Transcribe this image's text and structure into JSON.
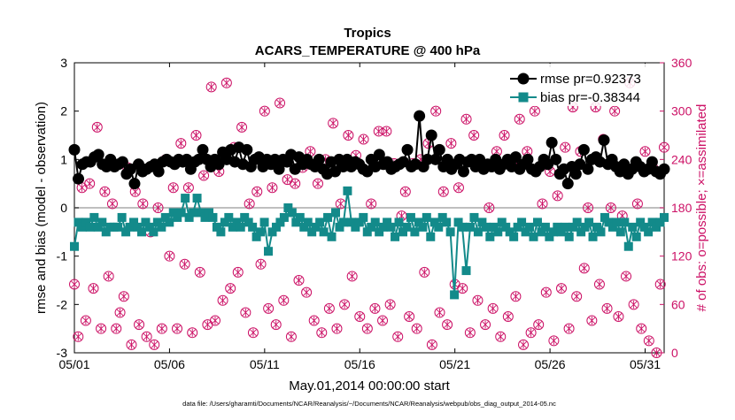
{
  "chart_data": {
    "type": "line",
    "title": "Tropics",
    "subtitle": "ACARS_TEMPERATURE @ 400 hPa",
    "xlabel": "May.01,2014 00:00:00 start",
    "ylabel_left": "rmse and bias (model - observation)",
    "ylabel_right": "# of obs: o=possible; ×=assimilated",
    "footnote": "data file: /Users/gharamti/Documents/NCAR/Reanalysis/~/Documents/NCAR/Reanalysis/webpub/obs_diag_output_2014-05.nc",
    "x_ticks": [
      "05/01",
      "05/06",
      "05/11",
      "05/16",
      "05/21",
      "05/26",
      "05/31"
    ],
    "y_left_ticks": [
      "-3",
      "-2",
      "-1",
      "0",
      "1",
      "2",
      "3"
    ],
    "y_right_ticks": [
      "0",
      "60",
      "120",
      "180",
      "240",
      "300",
      "360"
    ],
    "ylim_left": [
      -3,
      3
    ],
    "ylim_right": [
      0,
      360
    ],
    "xlim": [
      0,
      31
    ],
    "legend_position": "top-right",
    "colors": {
      "rmse": "#000000",
      "bias": "#138a8a",
      "obs": "#cc1166",
      "zero_line": "#aaaaaa"
    },
    "series": [
      {
        "name": "rmse pr=0.92373",
        "axis": "left",
        "values": [
          1.2,
          0.6,
          0.9,
          0.95,
          0.95,
          1.05,
          1.1,
          0.9,
          0.85,
          1.0,
          0.85,
          0.9,
          0.95,
          0.7,
          0.8,
          0.5,
          0.9,
          0.75,
          0.8,
          0.85,
          0.9,
          0.75,
          0.95,
          1.0,
          0.95,
          0.9,
          1.0,
          0.95,
          1.0,
          0.8,
          0.95,
          1.0,
          1.2,
          1.0,
          0.85,
          1.0,
          0.9,
          1.15,
          1.0,
          1.2,
          0.95,
          1.25,
          0.9,
          1.2,
          0.85,
          1.0,
          1.05,
          0.85,
          1.0,
          0.9,
          1.0,
          0.8,
          1.0,
          0.95,
          1.1,
          0.8,
          1.05,
          0.9,
          1.0,
          0.9,
          0.85,
          1.0,
          0.8,
          0.7,
          0.95,
          0.75,
          1.0,
          0.85,
          1.0,
          0.85,
          0.95,
          0.9,
          0.8,
          0.75,
          1.0,
          0.85,
          1.1,
          0.9,
          0.95,
          0.8,
          0.85,
          0.9,
          0.95,
          1.2,
          0.85,
          0.9,
          1.9,
          0.85,
          1.0,
          1.5,
          1.0,
          1.2,
          0.85,
          1.0,
          0.8,
          0.9,
          1.0,
          0.75,
          0.95,
          1.0,
          0.85,
          1.0,
          0.8,
          0.9,
          0.85,
          1.0,
          0.8,
          0.9,
          1.0,
          0.85,
          1.05,
          0.8,
          0.9,
          1.0,
          0.8,
          0.75,
          0.85,
          1.0,
          0.9,
          1.35,
          1.0,
          0.7,
          0.8,
          0.5,
          0.85,
          0.7,
          0.9,
          1.2,
          0.8,
          1.0,
          1.05,
          0.95,
          1.4,
          0.9,
          1.0,
          0.85,
          0.75,
          0.9,
          0.7,
          0.8,
          0.95,
          0.85,
          0.75,
          0.8,
          0.95,
          0.75,
          0.7,
          0.8
        ]
      },
      {
        "name": "bias pr=-0.38344",
        "axis": "left",
        "values": [
          -0.8,
          -0.3,
          -0.4,
          -0.3,
          -0.4,
          -0.2,
          -0.4,
          -0.3,
          -0.5,
          -0.4,
          -0.4,
          -0.4,
          -0.2,
          -0.5,
          -0.4,
          -0.3,
          -0.4,
          -0.5,
          -0.3,
          -0.4,
          -0.5,
          -0.3,
          -0.4,
          -0.2,
          -0.3,
          -0.1,
          -0.2,
          -0.1,
          0.2,
          -0.2,
          -0.1,
          0.2,
          -0.1,
          -0.2,
          -0.1,
          -0.2,
          -0.4,
          -0.5,
          -0.3,
          -0.2,
          -0.4,
          -0.3,
          -0.4,
          -0.2,
          -0.3,
          -0.4,
          -0.6,
          -0.5,
          -0.3,
          -0.9,
          -0.5,
          -0.4,
          -0.3,
          -0.2,
          0.0,
          -0.1,
          -0.3,
          -0.2,
          -0.4,
          -0.3,
          -0.5,
          -0.4,
          -0.3,
          -0.5,
          -0.2,
          -0.6,
          -0.1,
          -0.4,
          -0.3,
          0.35,
          -0.3,
          -0.4,
          -0.3,
          -0.2,
          -0.5,
          -0.4,
          -0.3,
          -0.5,
          -0.4,
          -0.3,
          -0.4,
          -0.6,
          -0.3,
          -0.5,
          -0.4,
          -0.2,
          -0.5,
          -0.3,
          -0.4,
          -0.2,
          -0.6,
          -0.3,
          -0.4,
          -0.2,
          -0.3,
          -0.5,
          -1.8,
          -0.3,
          -0.4,
          -1.3,
          -0.4,
          -0.2,
          -0.5,
          -0.3,
          -0.4,
          -0.6,
          -0.4,
          -0.5,
          -0.3,
          -0.4,
          -0.5,
          -0.6,
          -0.4,
          -0.3,
          -0.5,
          -0.4,
          -0.6,
          -0.3,
          -0.5,
          -0.4,
          -0.6,
          -0.5,
          -0.4,
          -0.5,
          -0.4,
          -0.6,
          -0.4,
          -0.3,
          -0.5,
          -0.4,
          -0.3,
          -0.6,
          -0.4,
          -0.5,
          -0.2,
          -0.3,
          -0.4,
          -0.3,
          -0.5,
          -0.3,
          -0.8,
          -0.4,
          -0.6,
          -0.3,
          -0.4,
          -0.5,
          -0.3,
          -0.4,
          -0.3,
          -0.2
        ]
      },
      {
        "name": "obs possible/assimilated",
        "axis": "right",
        "values": [
          85,
          20,
          205,
          40,
          210,
          80,
          280,
          30,
          200,
          95,
          185,
          30,
          50,
          70,
          230,
          10,
          200,
          35,
          185,
          20,
          150,
          10,
          180,
          30,
          240,
          120,
          205,
          30,
          260,
          110,
          205,
          25,
          270,
          100,
          220,
          35,
          330,
          40,
          225,
          65,
          335,
          80,
          255,
          100,
          280,
          50,
          185,
          25,
          200,
          110,
          300,
          55,
          205,
          35,
          310,
          65,
          215,
          20,
          210,
          90,
          230,
          75,
          250,
          40,
          210,
          25,
          240,
          55,
          285,
          30,
          185,
          60,
          270,
          95,
          245,
          45,
          265,
          30,
          185,
          55,
          275,
          40,
          275,
          60,
          235,
          20,
          170,
          200,
          45,
          235,
          30,
          240,
          100,
          260,
          10,
          300,
          50,
          200,
          35,
          260,
          85,
          205,
          80,
          290,
          25,
          270,
          65,
          230,
          35,
          180,
          55,
          250,
          20,
          270,
          45,
          235,
          70,
          290,
          10,
          250,
          25,
          300,
          35,
          185,
          75,
          225,
          15,
          195,
          80,
          255,
          30,
          305,
          70,
          250,
          105,
          180,
          40,
          305,
          85,
          265,
          55,
          180,
          300,
          45,
          170,
          95,
          335,
          60,
          185,
          30,
          250,
          15,
          230,
          0,
          85,
          255
        ]
      }
    ]
  }
}
